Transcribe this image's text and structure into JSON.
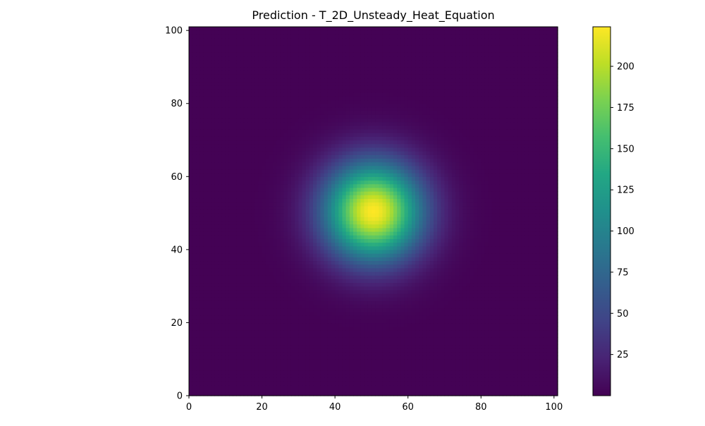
{
  "chart_data": {
    "type": "heatmap",
    "title": "Prediction - T_2D_Unsteady_Heat_Equation",
    "xlabel": "",
    "ylabel": "",
    "xlim": [
      0,
      101
    ],
    "ylim": [
      0,
      101
    ],
    "x_ticks": [
      "0",
      "20",
      "40",
      "60",
      "80",
      "100"
    ],
    "y_ticks": [
      "0",
      "20",
      "40",
      "60",
      "80",
      "100"
    ],
    "grid": {
      "nx": 101,
      "ny": 101,
      "x0": 0,
      "y0": 0,
      "step": 1
    },
    "field": {
      "peak_value": 224,
      "peak_x": 50,
      "peak_y": 50,
      "spread": 9.3,
      "background_value": 0.5
    },
    "colorbar": {
      "colormap": "viridis",
      "min": 0,
      "max": 224,
      "ticks": [
        "25",
        "50",
        "75",
        "100",
        "125",
        "150",
        "175",
        "200"
      ]
    },
    "grid_on": false,
    "legend": "none"
  }
}
